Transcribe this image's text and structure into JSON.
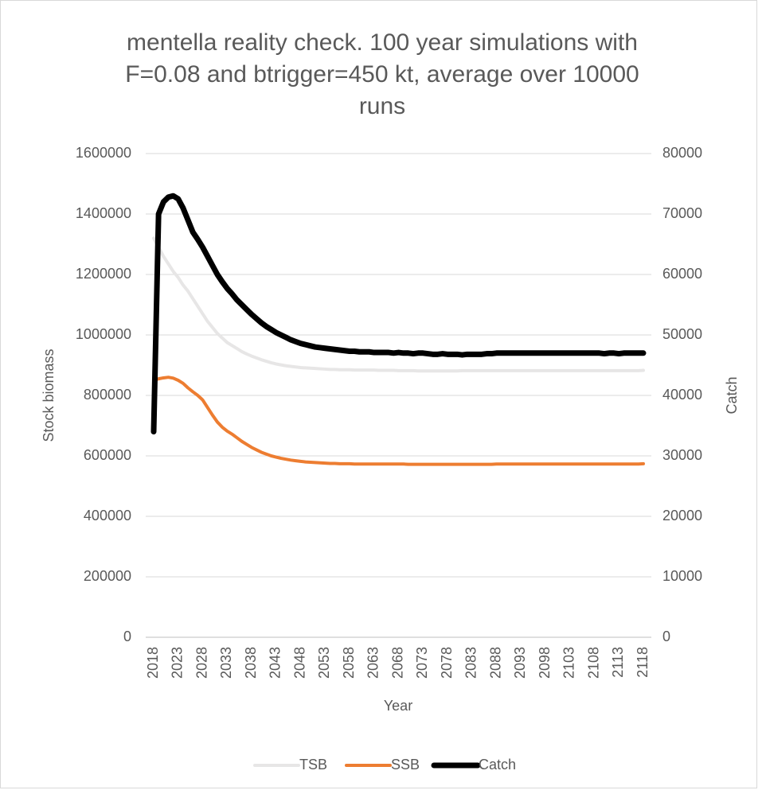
{
  "chart_data": {
    "type": "line",
    "title": "mentella reality check. 100 year simulations with F=0.08 and btrigger=450 kt, average over 10000 runs",
    "xlabel": "Year",
    "ylabel": "Stock biomass",
    "y2label": "Catch",
    "x": [
      2018,
      2019,
      2020,
      2021,
      2022,
      2023,
      2024,
      2025,
      2026,
      2027,
      2028,
      2029,
      2030,
      2031,
      2032,
      2033,
      2034,
      2035,
      2036,
      2037,
      2038,
      2039,
      2040,
      2041,
      2042,
      2043,
      2044,
      2045,
      2046,
      2047,
      2048,
      2049,
      2050,
      2051,
      2052,
      2053,
      2054,
      2055,
      2056,
      2057,
      2058,
      2059,
      2060,
      2061,
      2062,
      2063,
      2064,
      2065,
      2066,
      2067,
      2068,
      2069,
      2070,
      2071,
      2072,
      2073,
      2074,
      2075,
      2076,
      2077,
      2078,
      2079,
      2080,
      2081,
      2082,
      2083,
      2084,
      2085,
      2086,
      2087,
      2088,
      2089,
      2090,
      2091,
      2092,
      2093,
      2094,
      2095,
      2096,
      2097,
      2098,
      2099,
      2100,
      2101,
      2102,
      2103,
      2104,
      2105,
      2106,
      2107,
      2108,
      2109,
      2110,
      2111,
      2112,
      2113,
      2114,
      2115,
      2116,
      2117,
      2118
    ],
    "xlim": [
      2018,
      2118
    ],
    "xticks": [
      2018,
      2023,
      2028,
      2033,
      2038,
      2043,
      2048,
      2053,
      2058,
      2063,
      2068,
      2073,
      2078,
      2083,
      2088,
      2093,
      2098,
      2103,
      2108,
      2113,
      2118
    ],
    "ylim": [
      0,
      1600000
    ],
    "yticks": [
      0,
      200000,
      400000,
      600000,
      800000,
      1000000,
      1200000,
      1400000,
      1600000
    ],
    "y2lim": [
      0,
      80000
    ],
    "y2ticks": [
      0,
      10000,
      20000,
      30000,
      40000,
      50000,
      60000,
      70000,
      80000
    ],
    "grid": true,
    "legend": "bottom",
    "series": [
      {
        "name": "TSB",
        "color": "#e7e6e6",
        "values": [
          1320000,
          1290000,
          1260000,
          1235000,
          1210000,
          1190000,
          1165000,
          1145000,
          1120000,
          1095000,
          1070000,
          1045000,
          1025000,
          1005000,
          990000,
          975000,
          965000,
          955000,
          945000,
          937000,
          930000,
          924000,
          918000,
          913000,
          908000,
          904000,
          901000,
          898000,
          896000,
          894000,
          892000,
          891000,
          890000,
          889000,
          888000,
          887000,
          886000,
          886000,
          885000,
          885000,
          885000,
          884000,
          884000,
          884000,
          884000,
          884000,
          883000,
          883000,
          883000,
          883000,
          882000,
          882000,
          882000,
          882000,
          881000,
          881000,
          881000,
          881000,
          881000,
          881000,
          881000,
          881000,
          881000,
          882000,
          882000,
          882000,
          882000,
          882000,
          882000,
          882000,
          882000,
          882000,
          882000,
          882000,
          882000,
          882000,
          882000,
          882000,
          882000,
          882000,
          882000,
          882000,
          882000,
          882000,
          882000,
          882000,
          882000,
          882000,
          882000,
          882000,
          882000,
          882000,
          882000,
          882000,
          882000,
          882000,
          882000,
          882000,
          882000,
          882000,
          883000
        ]
      },
      {
        "name": "SSB",
        "color": "#ed7d31",
        "values": [
          850000,
          855000,
          858000,
          860000,
          857000,
          850000,
          840000,
          825000,
          812000,
          800000,
          785000,
          760000,
          735000,
          712000,
          695000,
          682000,
          672000,
          660000,
          648000,
          638000,
          628000,
          620000,
          612000,
          606000,
          600000,
          596000,
          592000,
          589000,
          586000,
          584000,
          582000,
          580000,
          579000,
          578000,
          577000,
          576000,
          575000,
          575000,
          574000,
          574000,
          574000,
          573000,
          573000,
          573000,
          573000,
          573000,
          573000,
          573000,
          573000,
          573000,
          573000,
          573000,
          572000,
          572000,
          572000,
          572000,
          572000,
          572000,
          572000,
          572000,
          572000,
          572000,
          572000,
          572000,
          572000,
          572000,
          572000,
          572000,
          572000,
          572000,
          573000,
          573000,
          573000,
          573000,
          573000,
          573000,
          573000,
          573000,
          573000,
          573000,
          573000,
          573000,
          573000,
          573000,
          573000,
          573000,
          573000,
          573000,
          573000,
          573000,
          573000,
          573000,
          573000,
          573000,
          573000,
          573000,
          573000,
          573000,
          573000,
          573000,
          574000
        ]
      },
      {
        "name": "Catch",
        "color": "#000000",
        "axis": "y2",
        "values": [
          34000,
          70000,
          72000,
          72800,
          73000,
          72500,
          71000,
          69000,
          67000,
          65800,
          64500,
          63000,
          61500,
          60000,
          58800,
          57700,
          56800,
          55800,
          55000,
          54200,
          53400,
          52700,
          52000,
          51400,
          50900,
          50400,
          50000,
          49600,
          49200,
          48900,
          48600,
          48400,
          48200,
          48000,
          47900,
          47800,
          47700,
          47600,
          47500,
          47400,
          47300,
          47300,
          47200,
          47200,
          47200,
          47100,
          47100,
          47100,
          47100,
          47000,
          47100,
          47000,
          47000,
          46900,
          47000,
          47000,
          46900,
          46800,
          46800,
          46900,
          46800,
          46800,
          46800,
          46700,
          46800,
          46800,
          46800,
          46800,
          46900,
          46900,
          47000,
          47000,
          47000,
          47000,
          47000,
          47000,
          47000,
          47000,
          47000,
          47000,
          47000,
          47000,
          47000,
          47000,
          47000,
          47000,
          47000,
          47000,
          47000,
          47000,
          47000,
          47000,
          46900,
          47000,
          47000,
          46900,
          47000,
          47000,
          47000,
          47000,
          47000
        ]
      }
    ]
  }
}
